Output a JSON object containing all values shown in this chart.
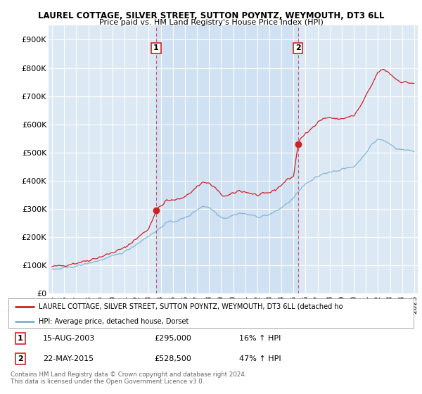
{
  "title": "LAUREL COTTAGE, SILVER STREET, SUTTON POYNTZ, WEYMOUTH, DT3 6LL",
  "subtitle": "Price paid vs. HM Land Registry's House Price Index (HPI)",
  "bg_color": "#dce9f5",
  "shade_color": "#d0e4f7",
  "ylim": [
    0,
    950000
  ],
  "yticks": [
    0,
    100000,
    200000,
    300000,
    400000,
    500000,
    600000,
    700000,
    800000,
    900000
  ],
  "ytick_labels": [
    "£0",
    "£100K",
    "£200K",
    "£300K",
    "£400K",
    "£500K",
    "£600K",
    "£700K",
    "£800K",
    "£900K"
  ],
  "sale1_date": 2003.62,
  "sale1_price": 295000,
  "sale2_date": 2015.38,
  "sale2_price": 528500,
  "red_line_color": "#cc2222",
  "blue_line_color": "#7bafd4",
  "vline_color": "#cc2222",
  "legend_label_red": "LAUREL COTTAGE, SILVER STREET, SUTTON POYNTZ, WEYMOUTH, DT3 6LL (detached ho",
  "legend_label_blue": "HPI: Average price, detached house, Dorset",
  "footer1": "Contains HM Land Registry data © Crown copyright and database right 2024.",
  "footer2": "This data is licensed under the Open Government Licence v3.0.",
  "xmin": 1994.7,
  "xmax": 2025.3,
  "xticks": [
    1995,
    1996,
    1997,
    1998,
    1999,
    2000,
    2001,
    2002,
    2003,
    2004,
    2005,
    2006,
    2007,
    2008,
    2009,
    2010,
    2011,
    2012,
    2013,
    2014,
    2015,
    2016,
    2017,
    2018,
    2019,
    2020,
    2021,
    2022,
    2023,
    2024,
    2025
  ]
}
